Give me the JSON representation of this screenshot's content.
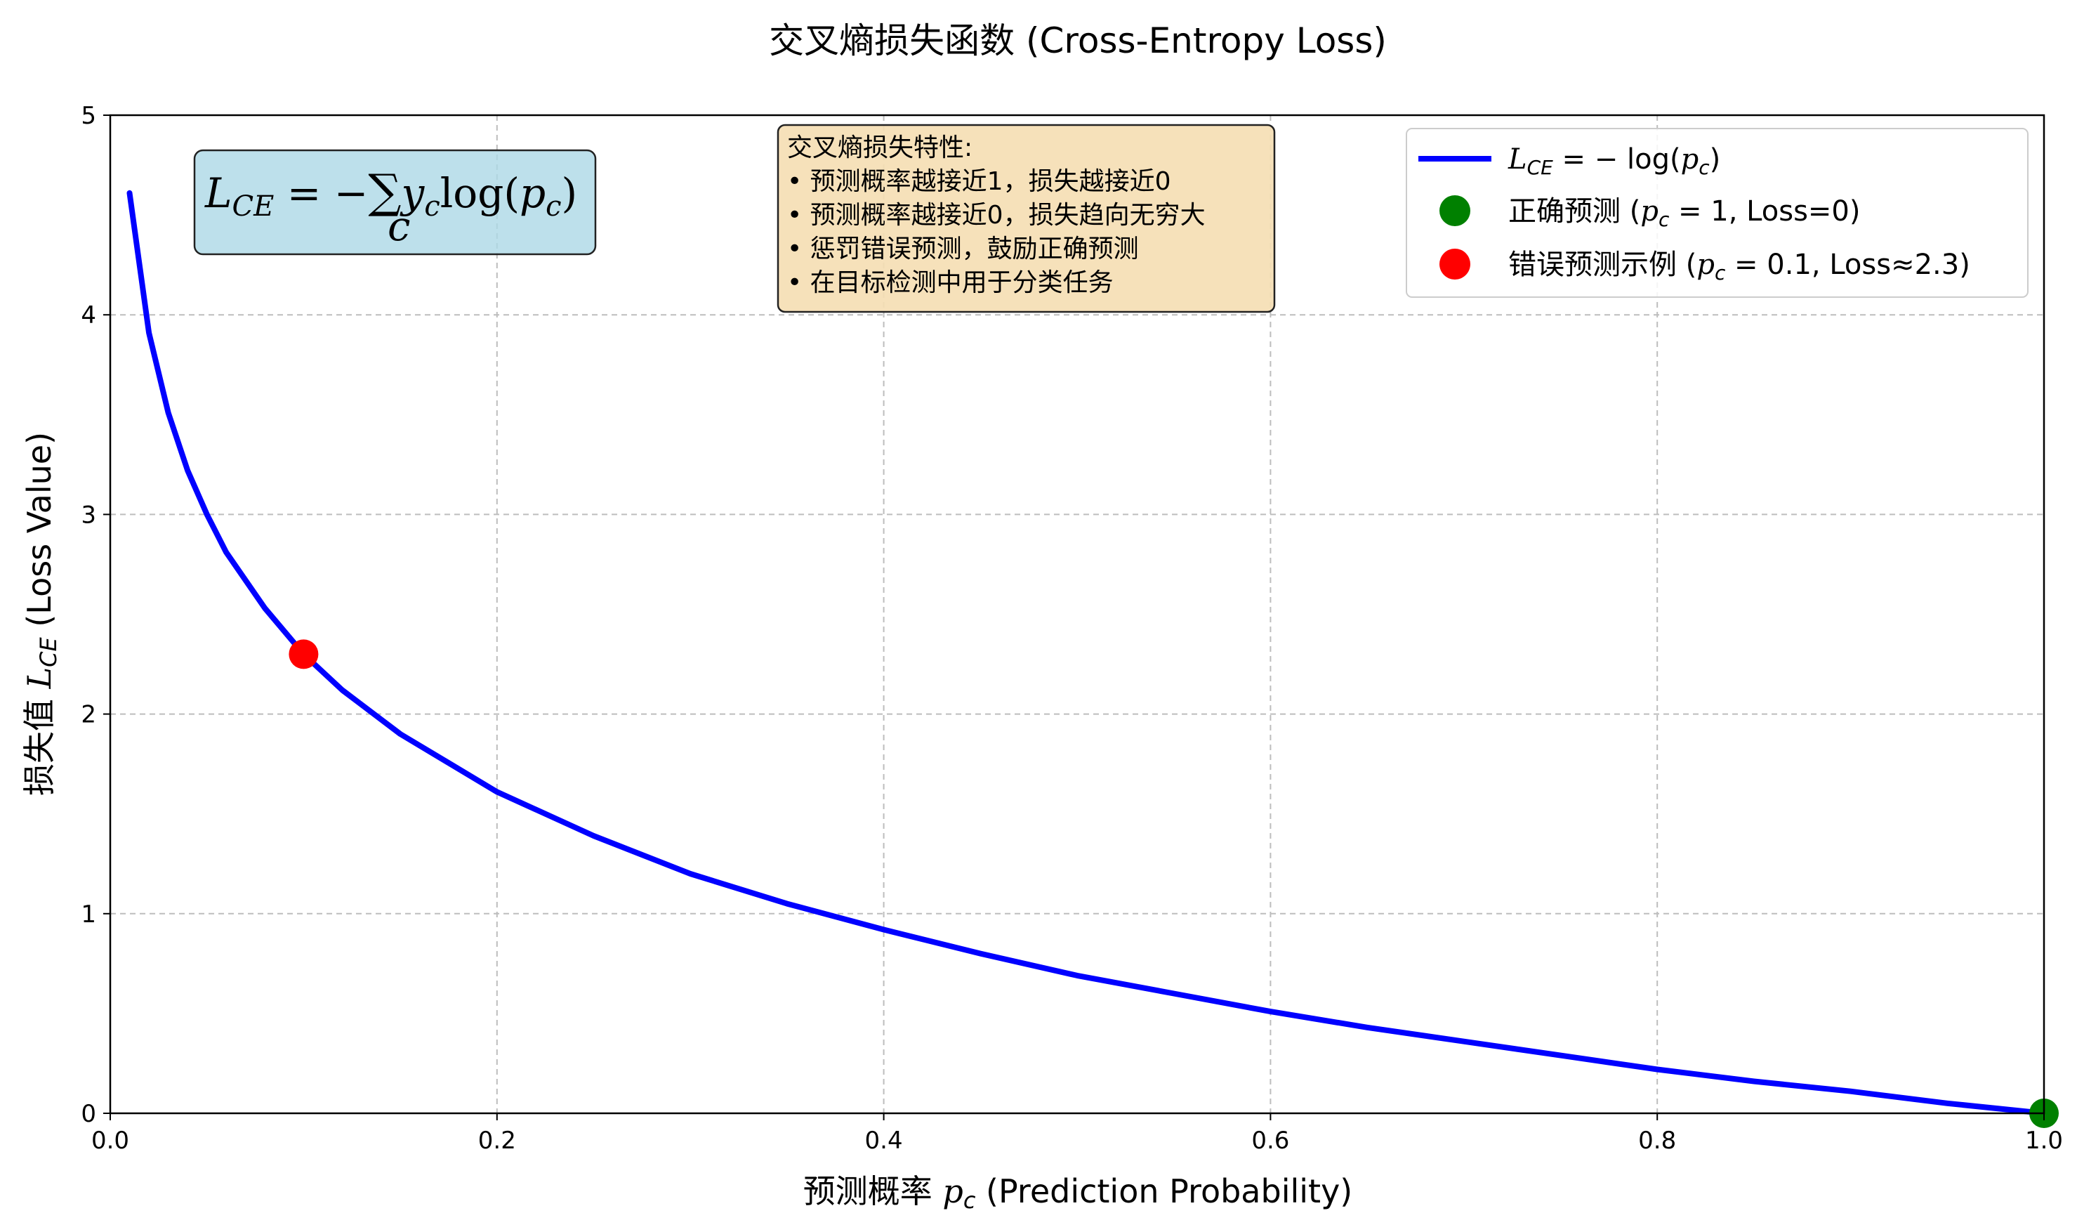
{
  "chart_data": {
    "type": "line",
    "title": "交叉熵损失函数 (Cross-Entropy Loss)",
    "xlabel": "预测概率 p_c (Prediction Probability)",
    "ylabel": "损失值 L_CE (Loss Value)",
    "xlim": [
      0.0,
      1.0
    ],
    "ylim": [
      0,
      5
    ],
    "xticks": [
      0.0,
      0.2,
      0.4,
      0.6,
      0.8,
      1.0
    ],
    "xtick_labels": [
      "0.0",
      "0.2",
      "0.4",
      "0.6",
      "0.8",
      "1.0"
    ],
    "yticks": [
      0,
      1,
      2,
      3,
      4,
      5
    ],
    "ytick_labels": [
      "0",
      "1",
      "2",
      "3",
      "4",
      "5"
    ],
    "grid": true,
    "legend_position": "top-right",
    "series": [
      {
        "name": "L_CE = −log(p_c)",
        "kind": "line",
        "color": "#0000ff",
        "function": "-ln(x)",
        "x": [
          0.01,
          0.02,
          0.03,
          0.04,
          0.05,
          0.06,
          0.08,
          0.1,
          0.12,
          0.15,
          0.2,
          0.25,
          0.3,
          0.35,
          0.4,
          0.45,
          0.5,
          0.55,
          0.6,
          0.65,
          0.7,
          0.75,
          0.8,
          0.85,
          0.9,
          0.95,
          1.0
        ],
        "y": [
          4.61,
          3.91,
          3.51,
          3.22,
          3.0,
          2.81,
          2.53,
          2.3,
          2.12,
          1.9,
          1.61,
          1.39,
          1.2,
          1.05,
          0.92,
          0.8,
          0.69,
          0.6,
          0.51,
          0.43,
          0.36,
          0.29,
          0.22,
          0.16,
          0.11,
          0.05,
          0.0
        ]
      },
      {
        "name": "正确预测 (p_c = 1, Loss=0)",
        "kind": "marker",
        "color": "#008000",
        "x": [
          1.0
        ],
        "y": [
          0.0
        ]
      },
      {
        "name": "错误预测示例 (p_c = 0.1, Loss≈2.3)",
        "kind": "marker",
        "color": "#ff0000",
        "x": [
          0.1
        ],
        "y": [
          2.3
        ]
      }
    ],
    "legend": [
      {
        "label": "L_CE = −log(p_c)",
        "kind": "line",
        "color": "#0000ff"
      },
      {
        "label": "正确预测 (p_c = 1, Loss=0)",
        "kind": "marker",
        "color": "#008000"
      },
      {
        "label": "错误预测示例 (p_c = 0.1, Loss≈2.3)",
        "kind": "marker",
        "color": "#ff0000"
      }
    ],
    "annotations": {
      "formula": "L_CE = −∑_c y_c log(p_c)",
      "formula_box_color": "#add8e6",
      "notes_title": "交叉熵损失特性:",
      "notes": [
        "• 预测概率越接近1，损失越接近0",
        "• 预测概率越接近0，损失趋向无穷大",
        "• 惩罚错误预测，鼓励正确预测",
        "• 在目标检测中用于分类任务"
      ],
      "notes_box_color": "#f5deb3"
    }
  }
}
